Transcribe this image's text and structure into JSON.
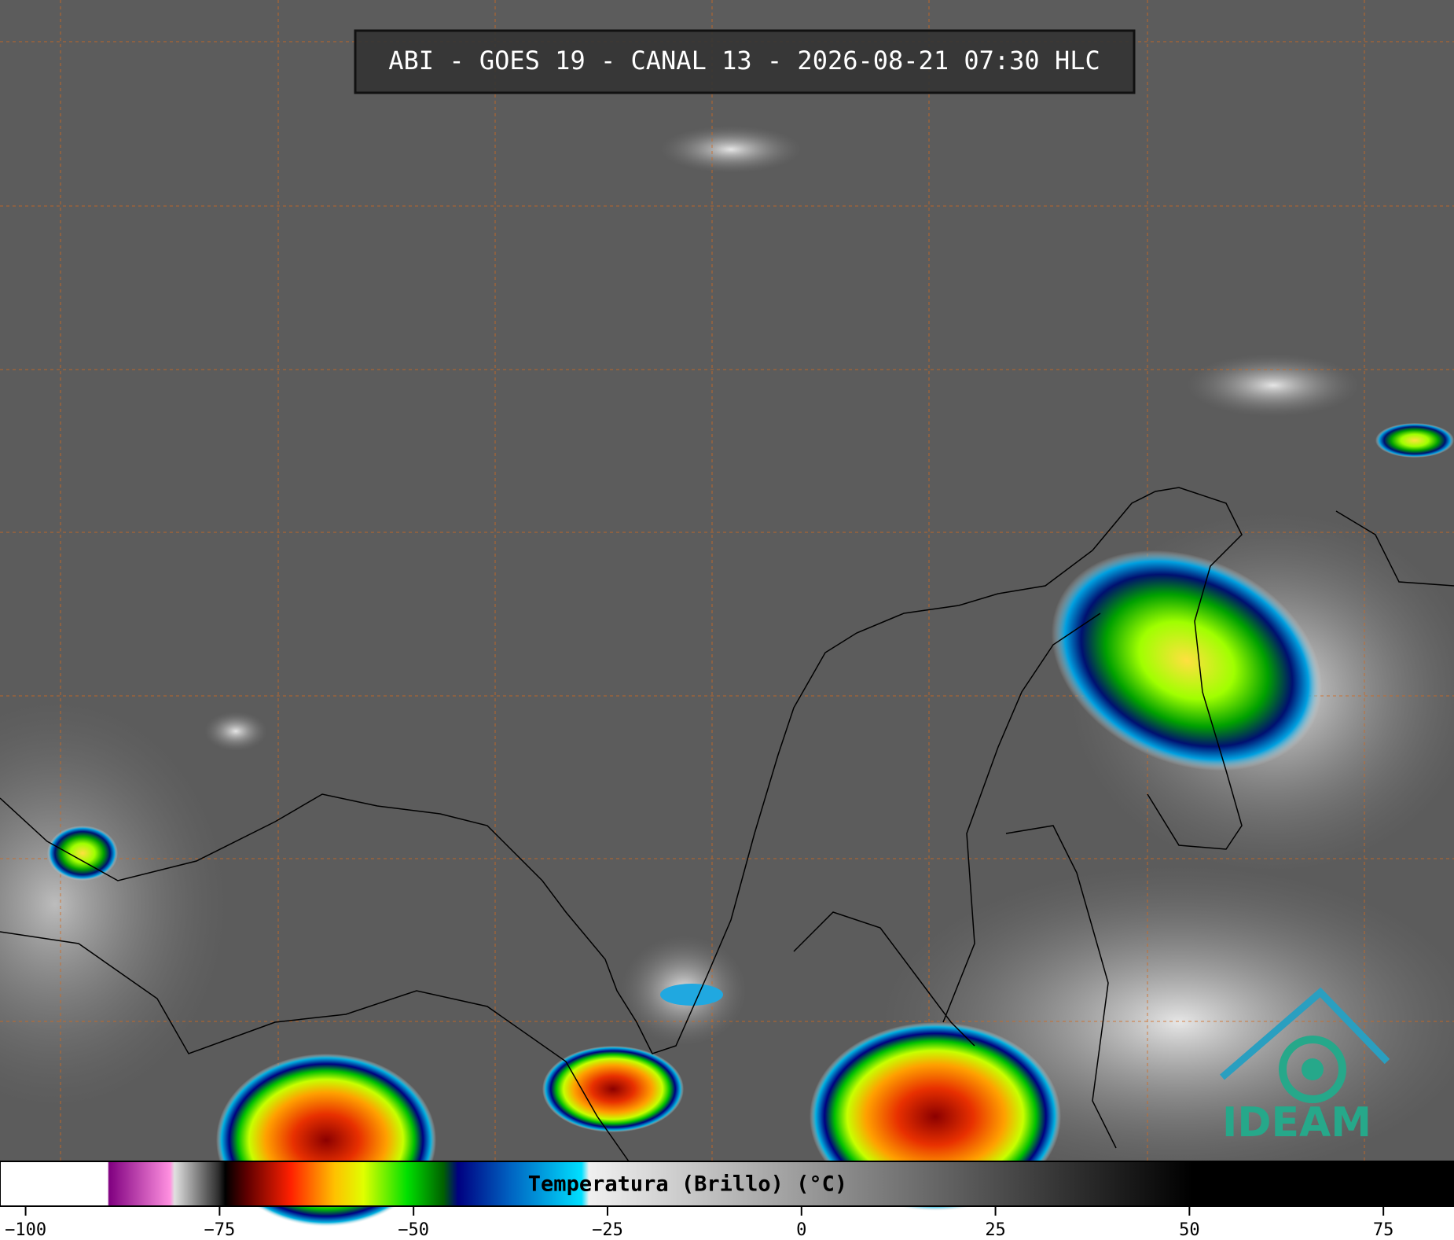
{
  "header": {
    "title": "ABI - GOES 19 - CANAL 13 - 2026-08-21 07:30 HLC"
  },
  "colorbar": {
    "label": "Temperatura (Brillo) (°C)",
    "range": [
      -103.3,
      84.1
    ],
    "ticks": [
      {
        "value": -100,
        "label": "−100"
      },
      {
        "value": -75,
        "label": "−75"
      },
      {
        "value": -50,
        "label": "−50"
      },
      {
        "value": -25,
        "label": "−25"
      },
      0,
      25,
      50,
      75
    ]
  },
  "logo": {
    "text": "IDEAM"
  }
}
